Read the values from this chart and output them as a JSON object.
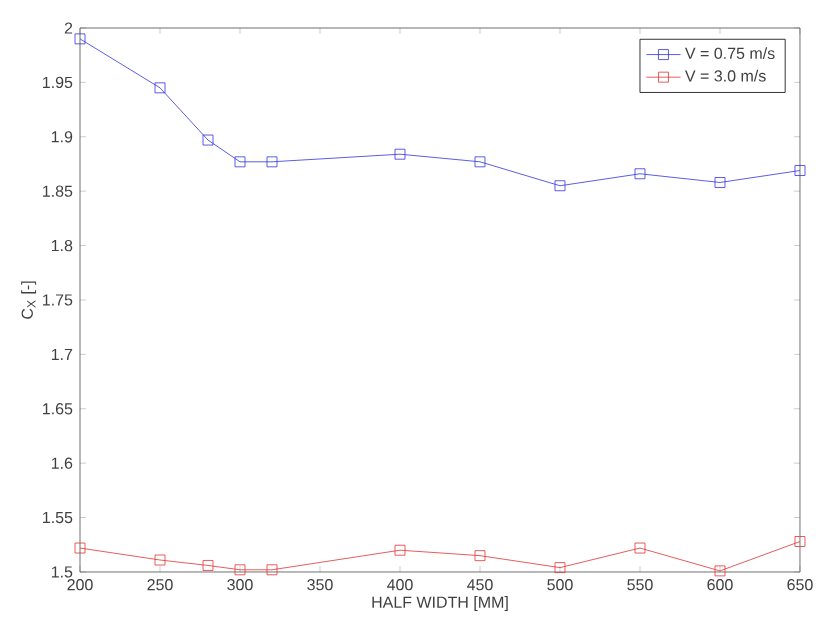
{
  "chart_data": {
    "type": "line",
    "xlabel": "HALF WIDTH [MM]",
    "ylabel": "C$_{X}$ [-]",
    "x": [
      200,
      250,
      280,
      300,
      320,
      400,
      450,
      500,
      550,
      600,
      650
    ],
    "series": [
      {
        "name": "V = 0.75 m/s",
        "color": "#3333dd",
        "values": [
          1.99,
          1.945,
          1.897,
          1.877,
          1.877,
          1.884,
          1.877,
          1.855,
          1.866,
          1.858,
          1.869
        ]
      },
      {
        "name": "V = 3.0 m/s",
        "color": "#e03333",
        "values": [
          1.522,
          1.511,
          1.506,
          1.502,
          1.502,
          1.52,
          1.515,
          1.504,
          1.522,
          1.501,
          1.528
        ]
      }
    ],
    "xlim": [
      200,
      650
    ],
    "ylim": [
      1.5,
      2
    ],
    "xticks": [
      200,
      250,
      300,
      350,
      400,
      450,
      500,
      550,
      600,
      650
    ],
    "yticks": [
      1.5,
      1.55,
      1.6,
      1.65,
      1.7,
      1.75,
      1.8,
      1.85,
      1.9,
      1.95,
      2
    ],
    "legend": "top right",
    "marker": "square",
    "line_style": "solid",
    "grid": false
  }
}
